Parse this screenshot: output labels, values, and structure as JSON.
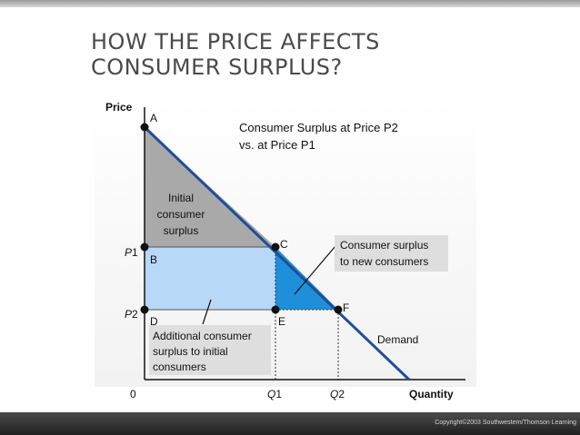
{
  "slide": {
    "title_line1": "HOW THE PRICE AFFECTS",
    "title_line2": "CONSUMER SURPLUS?",
    "copyright": "Copyright©2003  Southwestern/Thomson Learning"
  },
  "diagram": {
    "y_axis_label": "Price",
    "x_axis_label": "Quantity",
    "origin_label": "0",
    "p1_label": "P",
    "p1_sub": "1",
    "p2_label": "P",
    "p2_sub": "2",
    "q1_label": "Q",
    "q1_sub": "1",
    "q2_label": "Q",
    "q2_sub": "2",
    "point_a": "A",
    "point_b": "B",
    "point_c": "C",
    "point_d": "D",
    "point_e": "E",
    "point_f": "F",
    "heading_line1": "Consumer Surplus at Price P2",
    "heading_line2": "vs. at Price P1",
    "initial_surplus": [
      "Initial",
      "consumer",
      "surplus"
    ],
    "new_consumers": [
      "Consumer surplus",
      "to new consumers"
    ],
    "additional_surplus": [
      "Additional consumer",
      "surplus to initial",
      "consumers"
    ],
    "demand_label": "Demand",
    "colors": {
      "demand_line": "#1f4e9a",
      "initial_area": "#a9a9a9",
      "additional_area": "#b8d8f8",
      "new_consumers_area": "#1e8fd8",
      "point": "#111111",
      "label_box": "#dedede"
    }
  }
}
